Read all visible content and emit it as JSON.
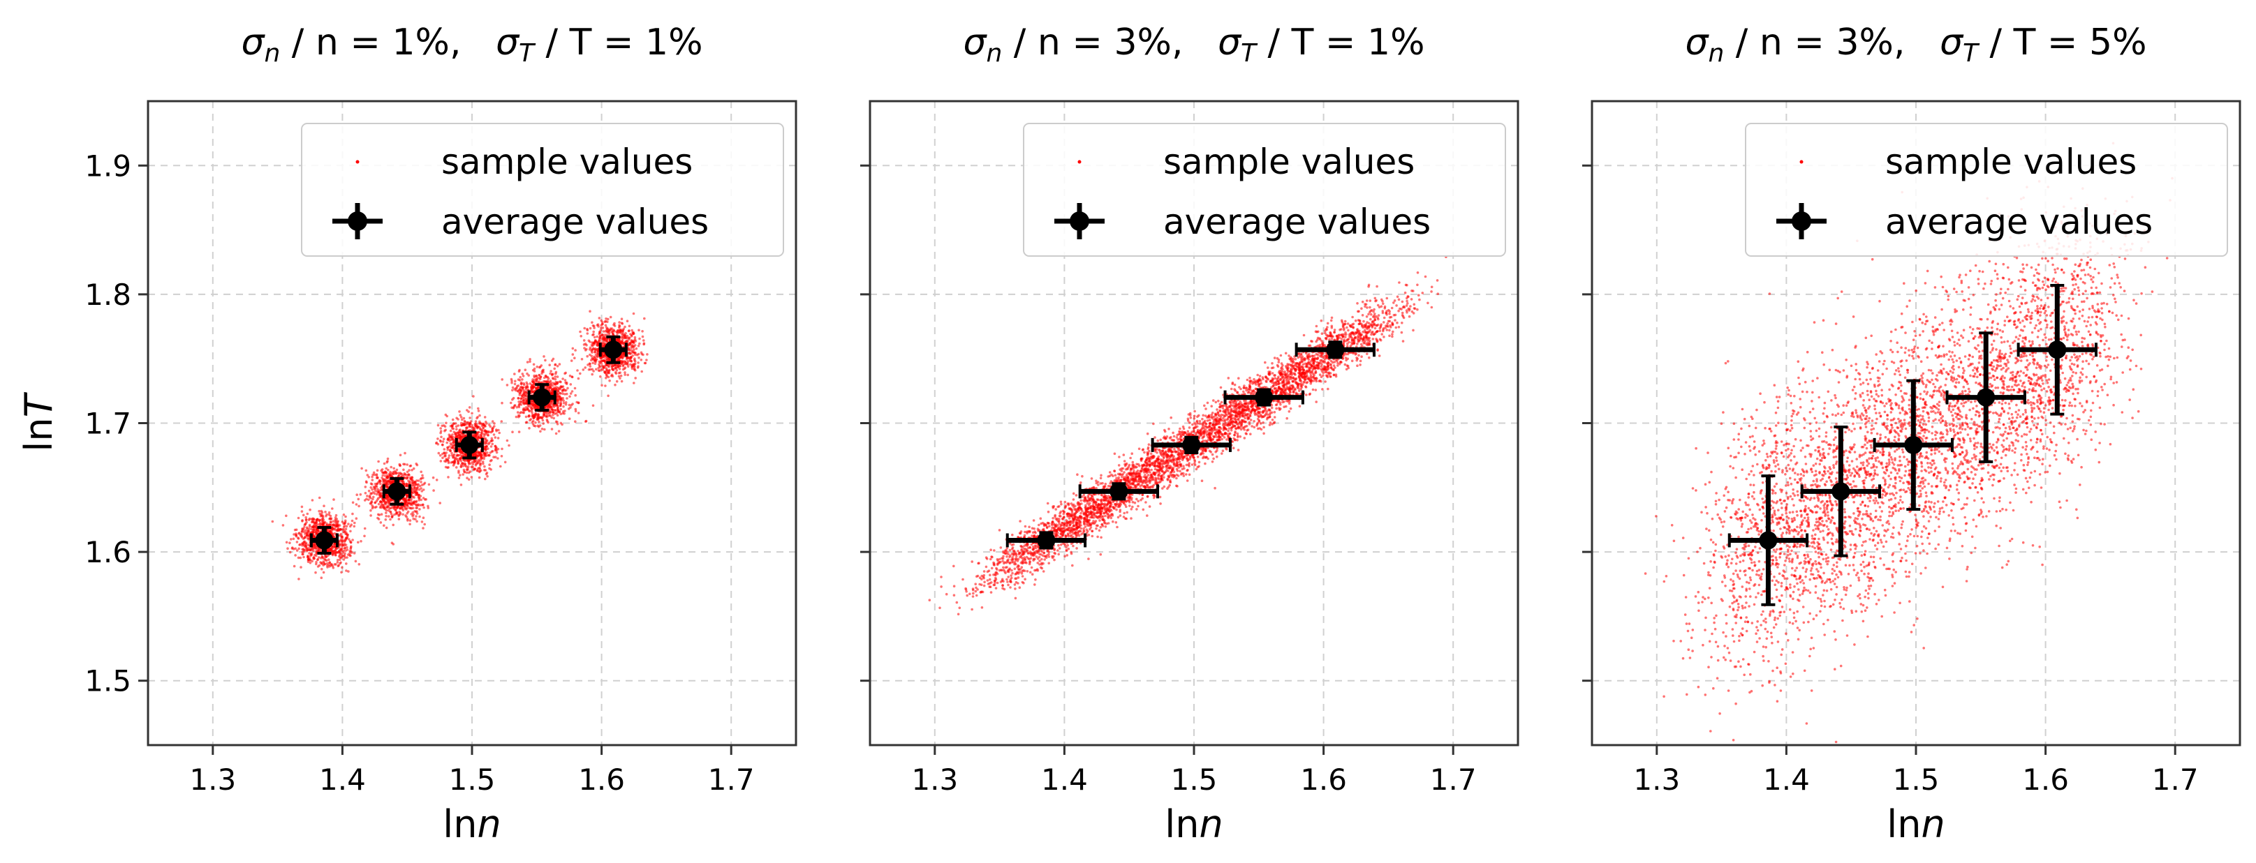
{
  "figure_title": "",
  "chart_data": [
    {
      "type": "scatter",
      "title": {
        "sn": "σ",
        "sn_sub": "n",
        "sn_tail": " / n = 1%,",
        "st": "σ",
        "st_sub": "T",
        "st_tail": " / T = 1%"
      },
      "sigma_n_pct": 1,
      "sigma_T_pct": 1,
      "xlabel": {
        "pre": "ln",
        "var": "n"
      },
      "ylabel": {
        "pre": "ln",
        "var": "T"
      },
      "xlim": [
        1.25,
        1.75
      ],
      "ylim": [
        1.45,
        1.95
      ],
      "xticks": [
        "1.3",
        "1.4",
        "1.5",
        "1.6",
        "1.7"
      ],
      "yticks": [
        "1.5",
        "1.6",
        "1.7",
        "1.8",
        "1.9"
      ],
      "show_yticklabels": true,
      "grid": true,
      "legend": {
        "position": "top-right",
        "entries": [
          "sample values",
          "average values"
        ]
      },
      "average_points": [
        {
          "x": 1.386,
          "y": 1.609,
          "xerr": 0.01,
          "yerr": 0.01
        },
        {
          "x": 1.442,
          "y": 1.647,
          "xerr": 0.01,
          "yerr": 0.01
        },
        {
          "x": 1.498,
          "y": 1.683,
          "xerr": 0.01,
          "yerr": 0.01
        },
        {
          "x": 1.554,
          "y": 1.72,
          "xerr": 0.01,
          "yerr": 0.01
        },
        {
          "x": 1.609,
          "y": 1.757,
          "xerr": 0.01,
          "yerr": 0.01
        }
      ],
      "sample_spread": {
        "sx": 0.01,
        "sy": 0.01,
        "correlated": false,
        "count_per_point": 900
      }
    },
    {
      "type": "scatter",
      "title": {
        "sn": "σ",
        "sn_sub": "n",
        "sn_tail": " / n = 3%,",
        "st": "σ",
        "st_sub": "T",
        "st_tail": " / T = 1%"
      },
      "sigma_n_pct": 3,
      "sigma_T_pct": 1,
      "xlabel": {
        "pre": "ln",
        "var": "n"
      },
      "ylabel": {
        "pre": "",
        "var": ""
      },
      "xlim": [
        1.25,
        1.75
      ],
      "ylim": [
        1.45,
        1.95
      ],
      "xticks": [
        "1.3",
        "1.4",
        "1.5",
        "1.6",
        "1.7"
      ],
      "yticks": [
        "1.5",
        "1.6",
        "1.7",
        "1.8",
        "1.9"
      ],
      "show_yticklabels": false,
      "grid": true,
      "legend": {
        "position": "top-right",
        "entries": [
          "sample values",
          "average values"
        ]
      },
      "average_points": [
        {
          "x": 1.386,
          "y": 1.609,
          "xerr": 0.03,
          "yerr": 0.006
        },
        {
          "x": 1.442,
          "y": 1.647,
          "xerr": 0.03,
          "yerr": 0.006
        },
        {
          "x": 1.498,
          "y": 1.683,
          "xerr": 0.03,
          "yerr": 0.006
        },
        {
          "x": 1.554,
          "y": 1.72,
          "xerr": 0.03,
          "yerr": 0.006
        },
        {
          "x": 1.609,
          "y": 1.757,
          "xerr": 0.03,
          "yerr": 0.006
        }
      ],
      "sample_spread": {
        "sx": 0.03,
        "sy": 0.01,
        "correlated": true,
        "count_per_point": 900
      }
    },
    {
      "type": "scatter",
      "title": {
        "sn": "σ",
        "sn_sub": "n",
        "sn_tail": " / n = 3%,",
        "st": "σ",
        "st_sub": "T",
        "st_tail": " / T = 5%"
      },
      "sigma_n_pct": 3,
      "sigma_T_pct": 5,
      "xlabel": {
        "pre": "ln",
        "var": "n"
      },
      "ylabel": {
        "pre": "",
        "var": ""
      },
      "xlim": [
        1.25,
        1.75
      ],
      "ylim": [
        1.45,
        1.95
      ],
      "xticks": [
        "1.3",
        "1.4",
        "1.5",
        "1.6",
        "1.7"
      ],
      "yticks": [
        "1.5",
        "1.6",
        "1.7",
        "1.8",
        "1.9"
      ],
      "show_yticklabels": false,
      "grid": true,
      "legend": {
        "position": "top-right",
        "entries": [
          "sample values",
          "average values"
        ]
      },
      "average_points": [
        {
          "x": 1.386,
          "y": 1.609,
          "xerr": 0.03,
          "yerr": 0.05
        },
        {
          "x": 1.442,
          "y": 1.647,
          "xerr": 0.03,
          "yerr": 0.05
        },
        {
          "x": 1.498,
          "y": 1.683,
          "xerr": 0.03,
          "yerr": 0.05
        },
        {
          "x": 1.554,
          "y": 1.72,
          "xerr": 0.03,
          "yerr": 0.05
        },
        {
          "x": 1.609,
          "y": 1.757,
          "xerr": 0.03,
          "yerr": 0.05
        }
      ],
      "sample_spread": {
        "sx": 0.03,
        "sy": 0.05,
        "correlated": true,
        "count_per_point": 900
      }
    }
  ],
  "colors": {
    "sample": "#ff0000",
    "average": "#000000",
    "grid": "#d0d0d0",
    "frame": "#333333"
  }
}
